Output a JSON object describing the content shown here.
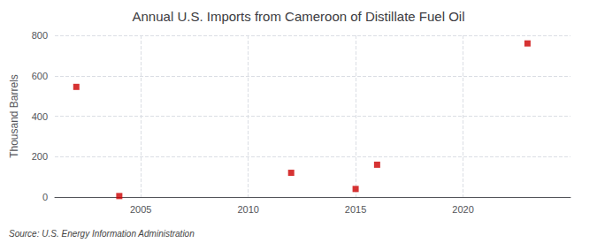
{
  "chart_data": {
    "type": "scatter",
    "title": "Annual U.S. Imports from Cameroon of Distillate Fuel Oil",
    "ylabel": "Thousand Barrels",
    "source": "Source: U.S. Energy Information Administration",
    "x": [
      2002,
      2004,
      2012,
      2015,
      2016,
      2023
    ],
    "values": [
      545,
      5,
      120,
      40,
      160,
      760
    ],
    "color": "#cc0000",
    "marker": "square",
    "xlim": [
      2001,
      2025
    ],
    "xticks": [
      2005,
      2010,
      2015,
      2020
    ],
    "ylim": [
      0,
      800
    ],
    "yticks": [
      0,
      200,
      400,
      600,
      800
    ],
    "grid": true
  }
}
